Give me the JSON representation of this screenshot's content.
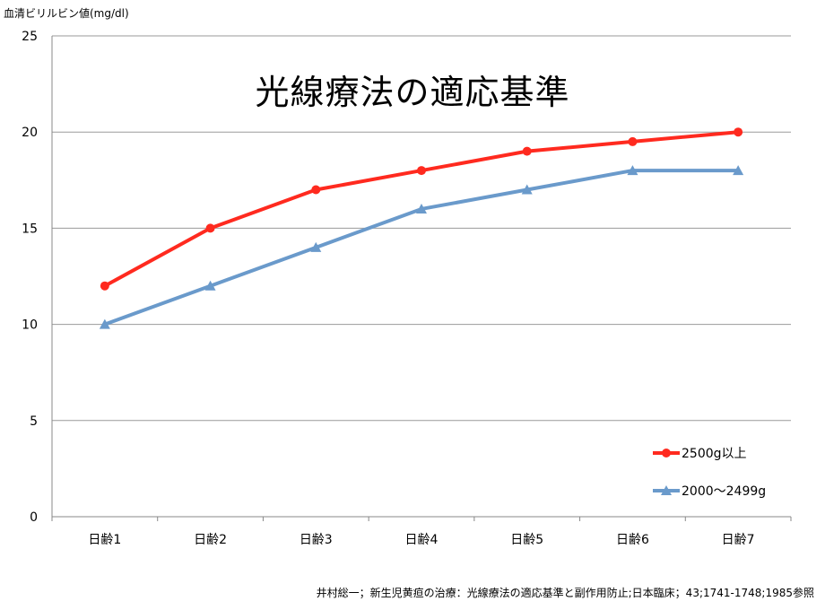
{
  "chart_data": {
    "type": "line",
    "title": "光線療法の適応基準",
    "ylabel": "血清ビリルビン値(mg/dl)",
    "xlabel": "",
    "categories": [
      "日齢1",
      "日齢2",
      "日齢3",
      "日齢4",
      "日齢5",
      "日齢6",
      "日齢7"
    ],
    "ylim": [
      0,
      25
    ],
    "yticks": [
      0,
      5,
      10,
      15,
      20,
      25
    ],
    "grid": true,
    "legend_position": "bottom-right",
    "series": [
      {
        "name": "2500g以上",
        "color": "#ff2a1f",
        "marker": "circle",
        "values": [
          12,
          15,
          17,
          18,
          19,
          19.5,
          20
        ]
      },
      {
        "name": "2000〜2499g",
        "color": "#6a9acb",
        "marker": "triangle",
        "values": [
          10,
          12,
          14,
          16,
          17,
          18,
          18
        ]
      }
    ]
  },
  "citation": "井村総一；新生児黄疸の治療：光線療法の適応基準と副作用防止;日本臨床；43;1741-1748;1985参照"
}
